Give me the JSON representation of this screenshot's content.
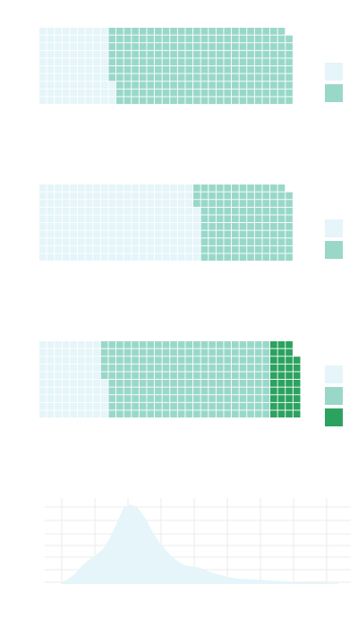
{
  "chart_data": [
    {
      "type": "waffle",
      "grid": {
        "columns": 34,
        "rows": 10
      },
      "series": [
        {
          "value": 93,
          "color": "#e5f5f9"
        },
        {
          "value": 236,
          "color": "#99d8c9"
        }
      ],
      "legend": "right"
    },
    {
      "type": "waffle",
      "grid": {
        "columns": 34,
        "rows": 10
      },
      "series": [
        {
          "value": 207,
          "color": "#e5f5f9"
        },
        {
          "value": 122,
          "color": "#99d8c9"
        }
      ],
      "legend": "right"
    },
    {
      "type": "waffle",
      "grid": {
        "columns": 34,
        "rows": 10
      },
      "series": [
        {
          "value": 85,
          "color": "#e5f5f9"
        },
        {
          "value": 215,
          "color": "#99d8c9"
        },
        {
          "value": 38,
          "color": "#2ca25f"
        }
      ],
      "legend": "right"
    },
    {
      "type": "area",
      "fill_color": "#e5f5f9",
      "grid": true,
      "x": [
        0,
        1,
        2,
        3,
        4,
        5,
        6,
        7,
        8,
        9,
        10,
        11,
        12,
        13,
        14,
        15,
        16,
        17,
        18,
        19,
        20,
        21,
        22,
        23,
        24,
        25,
        26,
        27,
        28,
        29,
        30,
        31,
        32,
        33,
        34,
        35,
        36,
        37,
        38,
        39,
        40
      ],
      "y": [
        0.3,
        1.2,
        2.5,
        4.5,
        6.0,
        7.2,
        8.6,
        11.3,
        15.0,
        19.0,
        20.0,
        19.2,
        17.0,
        13.8,
        10.9,
        8.8,
        6.9,
        5.5,
        4.6,
        4.4,
        4.1,
        3.4,
        2.7,
        2.3,
        1.8,
        1.5,
        1.3,
        1.2,
        1.1,
        1.0,
        0.9,
        0.8,
        0.7,
        0.6,
        0.5,
        0.4,
        0.35,
        0.3,
        0.25,
        0.2,
        0.2
      ],
      "xlim": [
        0,
        40
      ],
      "ylim": [
        0,
        20
      ]
    }
  ]
}
